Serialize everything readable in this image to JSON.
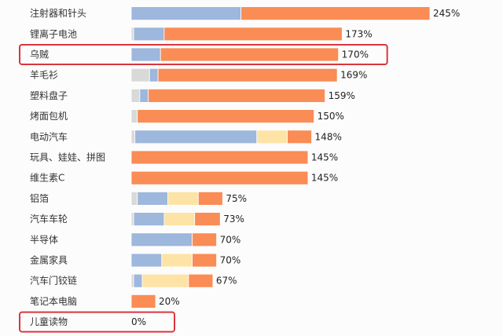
{
  "colors": {
    "gray": "#d9d9d9",
    "blue": "#9db7dd",
    "yellow": "#fde3a6",
    "orange": "#fa8c55",
    "highlight": "#d9363e"
  },
  "chart_data": {
    "type": "bar",
    "orientation": "horizontal",
    "stacked": true,
    "unit": "%",
    "segment_colors": [
      "gray",
      "blue",
      "yellow",
      "orange"
    ],
    "categories": [
      "注射器和针头",
      "锂离子电池",
      "乌贼",
      "羊毛衫",
      "塑料盘子",
      "烤面包机",
      "电动汽车",
      "玩具、娃娃、拼图",
      "维生素C",
      "铝箔",
      "汽车车轮",
      "半导体",
      "金属家具",
      "汽车门铰链",
      "笔记本电脑",
      "儿童读物"
    ],
    "totals": [
      245,
      173,
      170,
      169,
      159,
      150,
      148,
      145,
      145,
      75,
      73,
      70,
      70,
      67,
      20,
      0
    ],
    "value_labels": [
      "245%",
      "173%",
      "170%",
      "169%",
      "159%",
      "150%",
      "148%",
      "145%",
      "145%",
      "75%",
      "73%",
      "70%",
      "70%",
      "67%",
      "20%",
      "0%"
    ],
    "segments": [
      [
        0,
        90,
        0,
        155
      ],
      [
        2,
        25,
        0,
        146
      ],
      [
        0,
        24,
        0,
        146
      ],
      [
        15,
        7,
        0,
        147
      ],
      [
        7,
        7,
        0,
        145
      ],
      [
        5,
        0,
        0,
        145
      ],
      [
        3,
        100,
        25,
        20
      ],
      [
        0,
        0,
        0,
        145
      ],
      [
        0,
        0,
        0,
        145
      ],
      [
        5,
        25,
        25,
        20
      ],
      [
        2,
        25,
        25,
        21
      ],
      [
        0,
        50,
        0,
        20
      ],
      [
        0,
        25,
        25,
        20
      ],
      [
        2,
        7,
        38,
        20
      ],
      [
        0,
        0,
        0,
        20
      ],
      [
        0,
        0,
        0,
        0
      ]
    ],
    "xlim": [
      0,
      245
    ],
    "highlighted": [
      "乌贼",
      "儿童读物"
    ]
  }
}
